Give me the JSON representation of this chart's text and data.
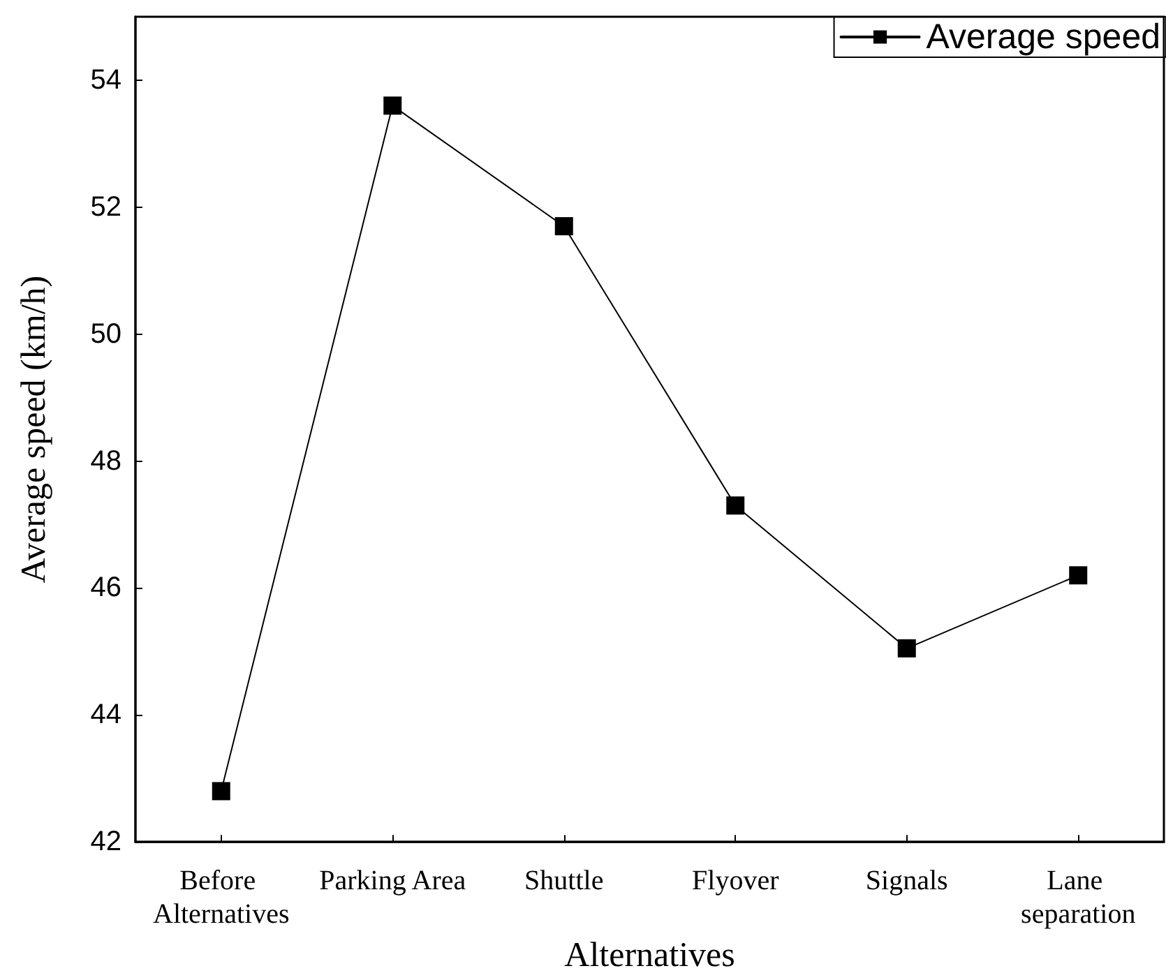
{
  "chart_data": {
    "type": "line",
    "xlabel": "Alternatives",
    "ylabel": "Average speed (km/h)",
    "categories": [
      "Before Alternatives",
      "Parking Area",
      "Shuttle",
      "Flyover",
      "Signals",
      "Lane separation"
    ],
    "series": [
      {
        "name": "Average speed",
        "color": "#000000",
        "values": [
          42.8,
          53.6,
          51.7,
          47.3,
          45.05,
          46.2
        ]
      }
    ],
    "ylim": [
      42,
      55
    ],
    "yticks": [
      42,
      44,
      46,
      48,
      50,
      52,
      54
    ],
    "grid": false,
    "legend": "top right",
    "marker": "square",
    "line_style": "solid"
  }
}
